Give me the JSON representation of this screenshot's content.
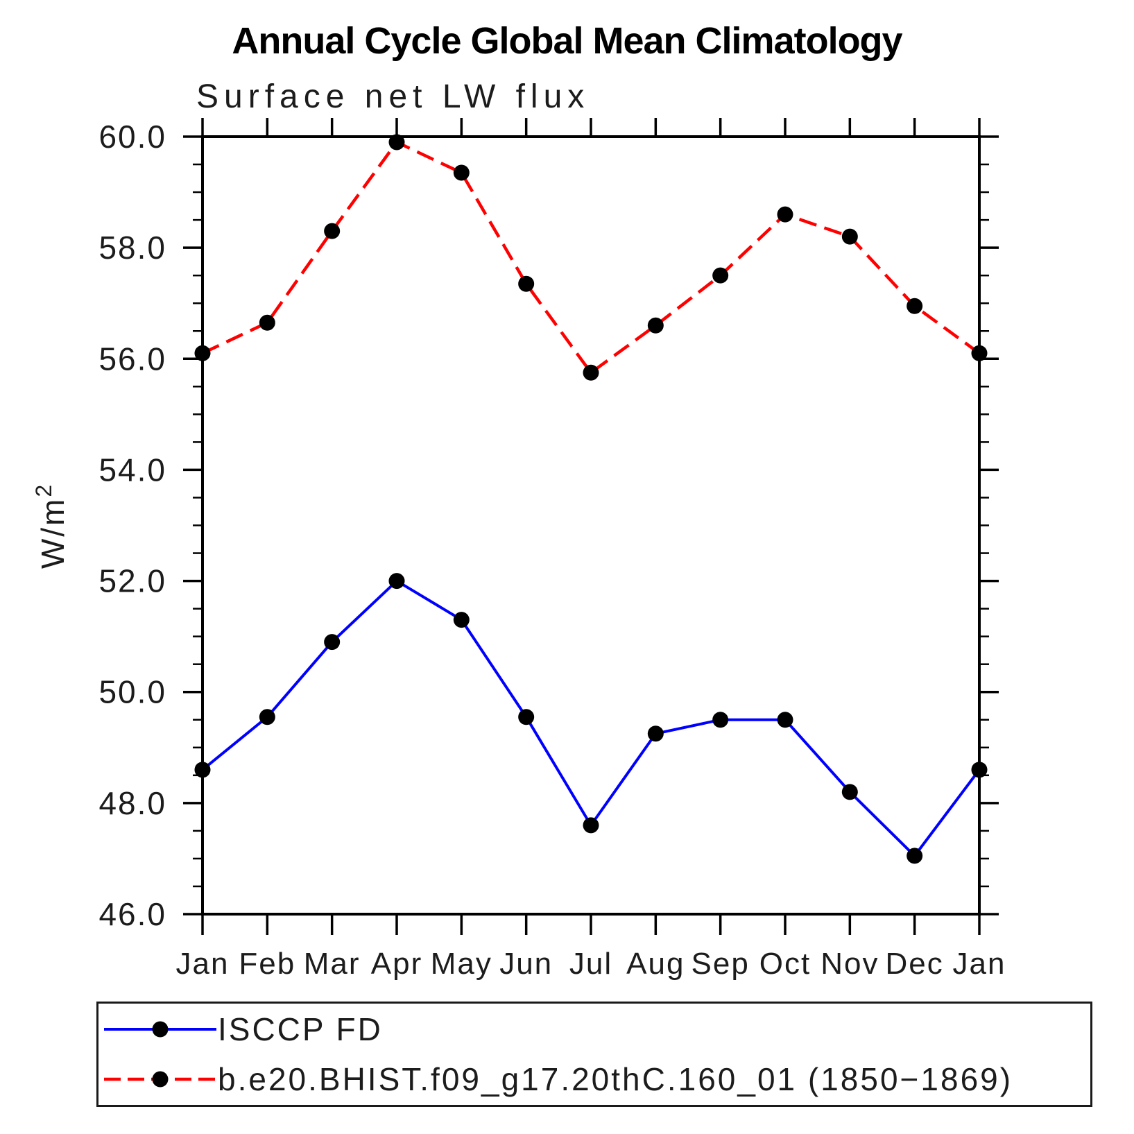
{
  "title": "Annual Cycle Global Mean Climatology",
  "subtitle": "Surface net LW flux",
  "chart_data": {
    "type": "line",
    "title": "Annual Cycle Global Mean Climatology",
    "subtitle": "Surface net LW flux",
    "xlabel": "",
    "ylabel": "W/m²",
    "ylabel_base": "W/m",
    "ylabel_superscript": "2",
    "ylim": [
      46.0,
      60.0
    ],
    "ytick_major_step": 2.0,
    "ytick_minor_step": 0.5,
    "ytick_labels": [
      "46.0",
      "48.0",
      "50.0",
      "52.0",
      "54.0",
      "56.0",
      "58.0",
      "60.0"
    ],
    "categories": [
      "Jan",
      "Feb",
      "Mar",
      "Apr",
      "May",
      "Jun",
      "Jul",
      "Aug",
      "Sep",
      "Oct",
      "Nov",
      "Dec",
      "Jan"
    ],
    "grid": false,
    "legend_position": "bottom",
    "axis_color": "#000000",
    "marker_color": "#000000",
    "background_color": "#ffffff",
    "series": [
      {
        "name": "ISCCP FD",
        "color": "#0000ff",
        "line_style": "solid",
        "marker": "filled-circle",
        "values": [
          48.6,
          49.55,
          50.9,
          52.0,
          51.3,
          49.55,
          47.6,
          49.25,
          49.5,
          49.5,
          48.2,
          47.05,
          48.6
        ]
      },
      {
        "name": "b.e20.BHIST.f09_g17.20thC.160_01 (1850−1869)",
        "color": "#ff0000",
        "line_style": "dashed",
        "marker": "filled-circle",
        "values": [
          56.1,
          56.65,
          58.3,
          59.9,
          59.35,
          57.35,
          55.75,
          56.6,
          57.5,
          58.6,
          58.2,
          56.95,
          56.1
        ]
      }
    ]
  }
}
